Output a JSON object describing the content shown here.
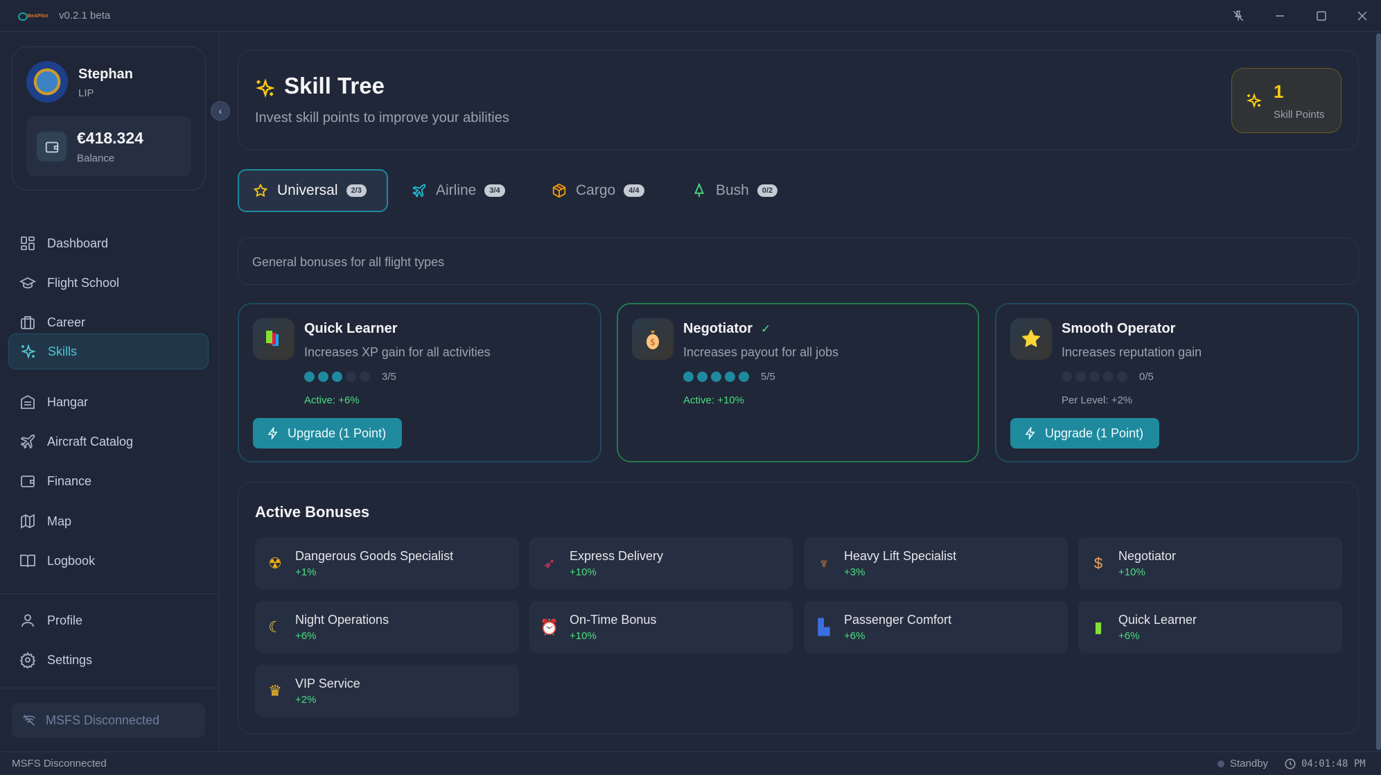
{
  "app": {
    "version": "v0.2.1 beta",
    "logo_text": "BeAPilot"
  },
  "window_controls": [
    "unpin-icon",
    "minimize-icon",
    "maximize-icon",
    "close-icon"
  ],
  "profile": {
    "name": "Stephan",
    "rank": "LIP",
    "balance": "€418.324",
    "balance_label": "Balance"
  },
  "sidebar": {
    "items": [
      {
        "label": "Dashboard",
        "icon": "dashboard-icon"
      },
      {
        "label": "Flight School",
        "icon": "graduation-cap-icon"
      },
      {
        "label": "Career",
        "icon": "briefcase-icon"
      },
      {
        "label": "Skills",
        "icon": "sparkles-icon",
        "active": true
      },
      {
        "label": "Hangar",
        "icon": "hangar-icon"
      },
      {
        "label": "Aircraft Catalog",
        "icon": "plane-icon"
      },
      {
        "label": "Finance",
        "icon": "wallet-icon"
      },
      {
        "label": "Map",
        "icon": "map-icon"
      },
      {
        "label": "Logbook",
        "icon": "book-icon"
      }
    ],
    "bottom_items": [
      {
        "label": "Profile",
        "icon": "user-icon"
      },
      {
        "label": "Settings",
        "icon": "gear-icon"
      }
    ],
    "sim_status": "MSFS Disconnected"
  },
  "header": {
    "title": "Skill Tree",
    "subtitle": "Invest skill points to improve your abilities",
    "skill_points": "1",
    "skill_points_label": "Skill Points"
  },
  "tabs": [
    {
      "label": "Universal",
      "count": "2/3",
      "color": "#facc15",
      "active": true
    },
    {
      "label": "Airline",
      "count": "3/4",
      "color": "#22b8cf"
    },
    {
      "label": "Cargo",
      "count": "4/4",
      "color": "#f59e0b"
    },
    {
      "label": "Bush",
      "count": "0/2",
      "color": "#4ade80"
    }
  ],
  "category_description": "General bonuses for all flight types",
  "skills": [
    {
      "name": "Quick Learner",
      "description": "Increases XP gain for all activities",
      "level": 3,
      "max": 5,
      "level_text": "3/5",
      "status": "Active: +6%",
      "button": "Upgrade (1 Point)"
    },
    {
      "name": "Negotiator",
      "description": "Increases payout for all jobs",
      "level": 5,
      "max": 5,
      "level_text": "5/5",
      "status": "Active: +10%",
      "maxed": true
    },
    {
      "name": "Smooth Operator",
      "description": "Increases reputation gain",
      "level": 0,
      "max": 5,
      "level_text": "0/5",
      "status": "Per Level: +2%",
      "button": "Upgrade (1 Point)"
    }
  ],
  "active_bonuses": {
    "title": "Active Bonuses",
    "items": [
      {
        "name": "Dangerous Goods Specialist",
        "value": "+1%",
        "icon": "radioactive-icon"
      },
      {
        "name": "Express Delivery",
        "value": "+10%",
        "icon": "rocket-icon"
      },
      {
        "name": "Heavy Lift Specialist",
        "value": "+3%",
        "icon": "weightlifter-icon"
      },
      {
        "name": "Negotiator",
        "value": "+10%",
        "icon": "money-bag-icon"
      },
      {
        "name": "Night Operations",
        "value": "+6%",
        "icon": "moon-icon"
      },
      {
        "name": "On-Time Bonus",
        "value": "+10%",
        "icon": "alarm-clock-icon"
      },
      {
        "name": "Passenger Comfort",
        "value": "+6%",
        "icon": "seat-icon"
      },
      {
        "name": "Quick Learner",
        "value": "+6%",
        "icon": "books-icon"
      },
      {
        "name": "VIP Service",
        "value": "+2%",
        "icon": "crown-icon"
      }
    ]
  },
  "statusbar": {
    "left": "MSFS Disconnected",
    "state": "Standby",
    "time": "04:01:48 PM"
  },
  "colors": {
    "accent": "#1f8a9e",
    "active_green": "#4ade80",
    "gold": "#facc15",
    "background": "#202738"
  }
}
